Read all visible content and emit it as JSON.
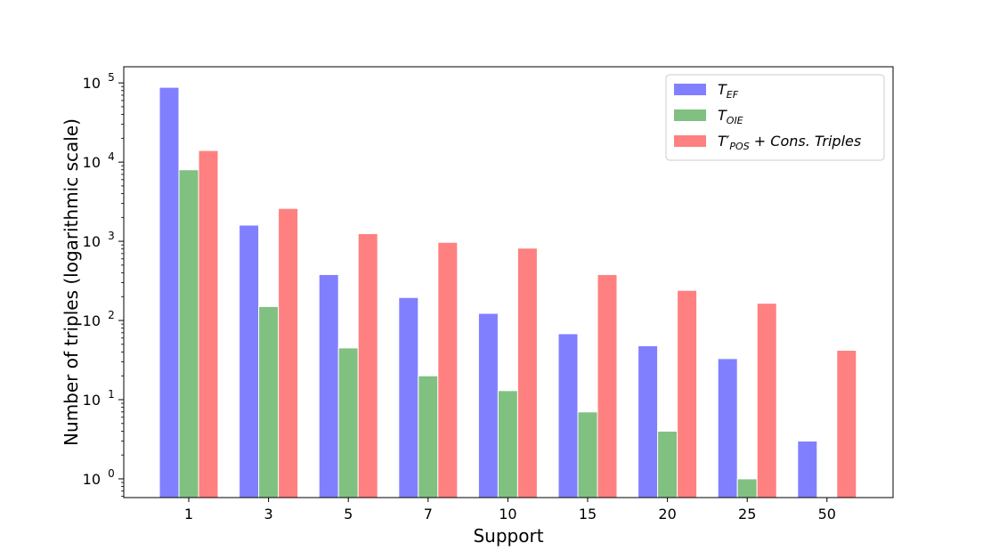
{
  "chart_data": {
    "type": "bar",
    "log_scale_y": true,
    "xlabel": "Support",
    "ylabel": "Number of triples (logarithmic scale)",
    "categories": [
      "1",
      "3",
      "5",
      "7",
      "10",
      "15",
      "20",
      "25",
      "50"
    ],
    "ylim": [
      0.58,
      160000
    ],
    "y_ticks": [
      {
        "value": 1,
        "base": "10",
        "exp": "0"
      },
      {
        "value": 10,
        "base": "10",
        "exp": "1"
      },
      {
        "value": 100,
        "base": "10",
        "exp": "2"
      },
      {
        "value": 1000,
        "base": "10",
        "exp": "3"
      },
      {
        "value": 10000,
        "base": "10",
        "exp": "4"
      },
      {
        "value": 100000,
        "base": "10",
        "exp": "5"
      }
    ],
    "grid": false,
    "legend_position": "top-right",
    "series": [
      {
        "name": "T_EF",
        "label_main": "T",
        "label_sub": "EF",
        "label_rest": "",
        "color": "#8080ff",
        "values": [
          88000,
          1600,
          380,
          195,
          123,
          68,
          48,
          33,
          3
        ]
      },
      {
        "name": "T_OIE",
        "label_main": "T",
        "label_sub": "OIE",
        "label_rest": "",
        "color": "#80c080",
        "values": [
          8000,
          150,
          45,
          20,
          13,
          7,
          4,
          1,
          null
        ]
      },
      {
        "name": "T'_POS + Cons. Triples",
        "label_main": "T′",
        "label_sub": "POS",
        "label_rest": " + Cons. Triples",
        "color": "#ff8080",
        "values": [
          14000,
          2600,
          1250,
          970,
          820,
          380,
          240,
          165,
          42
        ]
      }
    ]
  }
}
